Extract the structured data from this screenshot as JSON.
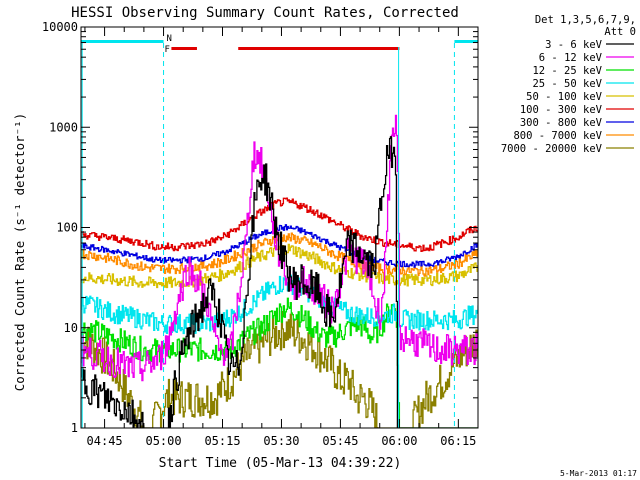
{
  "colors": {
    "background": "#ffffff",
    "axes": "#000000",
    "cyan": "#00e5ee",
    "red_bar": "#e00000"
  },
  "chart_data": {
    "type": "line",
    "title": "HESSI Observing Summary Count Rates, Corrected",
    "xlabel": "Start Time (05-Mar-13 04:39:22)",
    "ylabel": "Corrected Count Rate (s⁻¹ detector⁻¹)",
    "y_scale": "log",
    "ylim": [
      1,
      10000
    ],
    "xlim": [
      0,
      101
    ],
    "x_unit": "minutes after 04:39",
    "x_ticks": [
      {
        "label": "04:45",
        "x": 6
      },
      {
        "label": "05:00",
        "x": 21
      },
      {
        "label": "05:15",
        "x": 36
      },
      {
        "label": "05:30",
        "x": 51
      },
      {
        "label": "05:45",
        "x": 66
      },
      {
        "label": "06:00",
        "x": 81
      },
      {
        "label": "06:15",
        "x": 96
      }
    ],
    "y_ticks": [
      {
        "label": "1",
        "y": 1
      },
      {
        "label": "10",
        "y": 10
      },
      {
        "label": "100",
        "y": 100
      },
      {
        "label": "1000",
        "y": 1000
      },
      {
        "label": "10000",
        "y": 10000
      }
    ],
    "legend": {
      "position": "top-right",
      "header": [
        "Det 1,3,5,6,7,9,",
        "Att 0"
      ]
    },
    "flags": {
      "N_label": "N",
      "F_label": "F",
      "night_cyan_segments": [
        [
          0,
          21
        ],
        [
          95,
          101
        ]
      ],
      "night_markers_x": [
        21,
        95
      ],
      "flare_red_segments": [
        [
          23,
          29.5
        ],
        [
          40,
          81
        ]
      ]
    },
    "series": [
      {
        "name": "3 - 6 keV",
        "color": "#000000",
        "x": [
          0,
          6,
          12,
          16,
          20,
          22,
          24,
          27,
          30,
          32,
          33,
          34,
          35,
          36,
          37,
          38,
          40,
          42,
          43,
          44,
          45,
          46,
          47,
          48,
          50,
          52,
          54,
          56,
          58,
          60,
          62,
          64,
          66,
          68,
          70,
          72,
          74,
          75,
          76,
          77,
          78,
          79,
          80,
          80.5,
          81,
          83,
          85,
          88,
          91,
          94,
          96,
          98,
          101
        ],
        "y": [
          3,
          2,
          1.5,
          1,
          1,
          1,
          3,
          8,
          14,
          20,
          22,
          20,
          14,
          9,
          5,
          4,
          4,
          20,
          60,
          150,
          280,
          330,
          300,
          200,
          80,
          40,
          28,
          30,
          25,
          24,
          15,
          12,
          28,
          70,
          60,
          50,
          40,
          55,
          150,
          300,
          500,
          600,
          500,
          1,
          1,
          1,
          1,
          1,
          1,
          1,
          1,
          1,
          1
        ]
      },
      {
        "name": "6 - 12 keV",
        "color": "#ee00ee",
        "x": [
          0,
          6,
          12,
          16,
          20,
          22,
          24,
          27,
          30,
          32,
          33,
          34,
          35,
          36,
          38,
          40,
          42,
          43,
          44,
          45,
          46,
          47,
          48,
          50,
          52,
          54,
          56,
          58,
          60,
          62,
          64,
          66,
          68,
          70,
          72,
          74,
          75,
          76,
          77,
          78,
          79,
          80,
          80.5,
          81,
          83,
          86,
          90,
          94,
          96,
          101
        ],
        "y": [
          6,
          5,
          4,
          4,
          5,
          7,
          15,
          40,
          28,
          18,
          12,
          8,
          6,
          6,
          6,
          20,
          80,
          250,
          560,
          500,
          420,
          300,
          160,
          60,
          35,
          26,
          30,
          25,
          24,
          18,
          15,
          30,
          60,
          50,
          45,
          25,
          15,
          14,
          25,
          200,
          600,
          1000,
          500,
          8,
          8,
          7,
          6,
          6,
          6,
          6
        ]
      },
      {
        "name": "12 - 25 keV",
        "color": "#00e000",
        "x": [
          0,
          4,
          8,
          12,
          16,
          20,
          22,
          24,
          26,
          28,
          30,
          32,
          34,
          36,
          38,
          40,
          42,
          44,
          46,
          48,
          50,
          52,
          54,
          56,
          58,
          60,
          62,
          64,
          66,
          68,
          70,
          72,
          74,
          76,
          78,
          80,
          81,
          82,
          84,
          88,
          92,
          94,
          96,
          98,
          101
        ],
        "y": [
          10,
          9,
          8,
          7,
          6,
          6,
          6,
          6,
          6,
          6,
          6,
          6,
          6,
          6,
          6,
          7,
          8,
          9,
          10,
          12,
          14,
          16,
          15,
          13,
          11,
          9,
          8,
          8,
          9,
          10,
          11,
          10,
          8,
          10,
          14,
          18,
          1,
          1,
          1,
          1,
          1,
          1,
          1,
          1,
          1
        ]
      },
      {
        "name": "25 - 50 keV",
        "color": "#00e5ee",
        "x": [
          0,
          4,
          8,
          12,
          16,
          20,
          24,
          28,
          32,
          36,
          40,
          44,
          48,
          50,
          52,
          54,
          56,
          60,
          64,
          68,
          72,
          76,
          80,
          81,
          84,
          88,
          92,
          96,
          98,
          101
        ],
        "y": [
          18,
          16,
          14,
          13,
          12,
          11,
          11,
          11,
          11,
          12,
          14,
          18,
          24,
          27,
          28,
          27,
          25,
          20,
          16,
          14,
          13,
          13,
          14,
          12,
          12,
          12,
          12,
          12,
          13,
          14
        ]
      },
      {
        "name": "50 - 100 keV",
        "color": "#d8c000",
        "x": [
          0,
          4,
          8,
          12,
          16,
          20,
          24,
          28,
          32,
          36,
          40,
          44,
          48,
          50,
          52,
          54,
          56,
          60,
          64,
          68,
          72,
          76,
          80,
          84,
          88,
          92,
          96,
          98,
          101
        ],
        "y": [
          32,
          31,
          30,
          29,
          28,
          28,
          28,
          29,
          31,
          34,
          40,
          48,
          56,
          60,
          62,
          60,
          56,
          48,
          40,
          36,
          33,
          31,
          30,
          30,
          30,
          31,
          33,
          36,
          40
        ]
      },
      {
        "name": "100 - 300 keV",
        "color": "#e00000",
        "x": [
          0,
          4,
          8,
          12,
          16,
          18,
          20,
          24,
          28,
          32,
          36,
          40,
          44,
          48,
          50,
          52,
          54,
          56,
          60,
          64,
          68,
          72,
          76,
          80,
          82,
          84,
          88,
          92,
          96,
          98,
          101
        ],
        "y": [
          85,
          82,
          78,
          74,
          70,
          66,
          64,
          64,
          66,
          70,
          80,
          100,
          130,
          160,
          175,
          180,
          175,
          165,
          140,
          115,
          95,
          80,
          72,
          68,
          66,
          64,
          62,
          70,
          80,
          90,
          100
        ]
      },
      {
        "name": "300 - 800 keV",
        "color": "#0000e0",
        "x": [
          0,
          4,
          8,
          12,
          16,
          18,
          20,
          24,
          28,
          32,
          36,
          40,
          44,
          48,
          50,
          52,
          54,
          56,
          60,
          64,
          68,
          72,
          76,
          80,
          84,
          88,
          92,
          96,
          98,
          101
        ],
        "y": [
          65,
          62,
          58,
          54,
          50,
          48,
          47,
          47,
          48,
          50,
          56,
          66,
          80,
          92,
          98,
          100,
          98,
          93,
          80,
          68,
          58,
          50,
          46,
          44,
          43,
          43,
          46,
          52,
          58,
          68
        ]
      },
      {
        "name": "800 - 7000 keV",
        "color": "#ff8c00",
        "x": [
          0,
          4,
          8,
          12,
          16,
          20,
          24,
          28,
          32,
          36,
          40,
          44,
          48,
          50,
          52,
          54,
          56,
          60,
          64,
          68,
          72,
          76,
          80,
          84,
          88,
          92,
          96,
          98,
          101
        ],
        "y": [
          55,
          52,
          48,
          44,
          40,
          39,
          39,
          40,
          42,
          46,
          54,
          64,
          74,
          78,
          80,
          78,
          75,
          66,
          55,
          47,
          42,
          39,
          38,
          37,
          37,
          39,
          44,
          48,
          56
        ]
      },
      {
        "name": "7000 - 20000 keV",
        "color": "#8b8000",
        "x": [
          0,
          2,
          4,
          6,
          8,
          10,
          12,
          14,
          16,
          18,
          20,
          22,
          24,
          26,
          28,
          30,
          32,
          34,
          36,
          38,
          40,
          42,
          44,
          46,
          48,
          50,
          52,
          54,
          56,
          58,
          60,
          62,
          64,
          66,
          68,
          70,
          72,
          74,
          76,
          78,
          80,
          82,
          84,
          86,
          88,
          90,
          92,
          94,
          96,
          98,
          100,
          101
        ],
        "y": [
          8,
          7,
          6,
          5,
          4,
          3,
          2,
          1.5,
          1,
          1,
          1.5,
          2,
          2,
          2,
          2,
          2,
          2,
          2,
          2.5,
          3,
          4,
          5,
          6,
          7,
          8,
          9,
          10,
          9,
          8,
          7,
          6,
          5,
          4,
          3,
          3,
          2,
          2,
          1.5,
          1,
          1,
          1,
          1,
          1,
          1.5,
          2,
          2.5,
          3,
          4,
          5,
          6,
          7,
          8
        ]
      }
    ]
  },
  "footer": {
    "timestamp": "5-Mar-2013 01:17"
  }
}
